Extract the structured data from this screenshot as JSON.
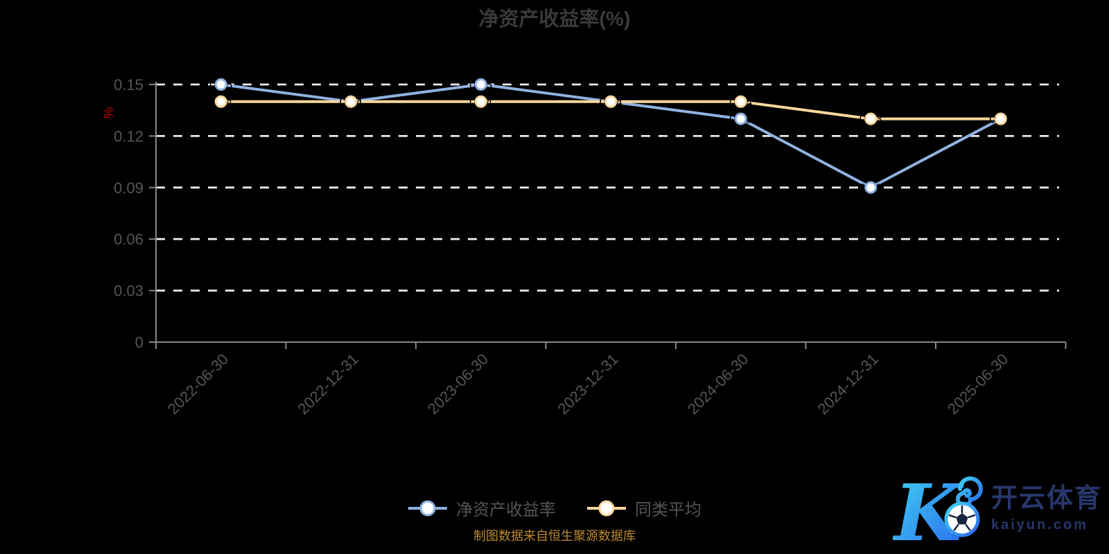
{
  "chart_data": {
    "type": "line",
    "title": "净资产收益率(%)",
    "ylabel": "%",
    "categories": [
      "2022-06-30",
      "2022-12-31",
      "2023-06-30",
      "2023-12-31",
      "2024-06-30",
      "2024-12-31",
      "2025-06-30"
    ],
    "series": [
      {
        "name": "净资产收益率",
        "color": "#8fb2e0",
        "values": [
          0.15,
          0.14,
          0.15,
          0.14,
          0.13,
          0.09,
          0.13
        ]
      },
      {
        "name": "同类平均",
        "color": "#fbd79d",
        "values": [
          0.14,
          0.14,
          0.14,
          0.14,
          0.14,
          0.13,
          0.13
        ]
      }
    ],
    "y_ticks": [
      0,
      0.03,
      0.06,
      0.09,
      0.12,
      0.15
    ],
    "ylim": [
      0,
      0.15
    ],
    "grid": "horizontal-white-dashed",
    "legend_position": "bottom",
    "background_color": "#000000",
    "title_color": "#3a3a3a",
    "axis_label_color": "#565656",
    "axis_line_color": "#878787",
    "grid_color": "#ebebeb",
    "point_label_color": "#000000",
    "ylabel_color": "#c00000"
  },
  "footer": {
    "caption": "制图数据来自恒生聚源数据库",
    "color": "#bd8a2f"
  },
  "watermark": {
    "brand": "开云体育",
    "domain": "kaiyun.com",
    "color": "#27376b"
  }
}
